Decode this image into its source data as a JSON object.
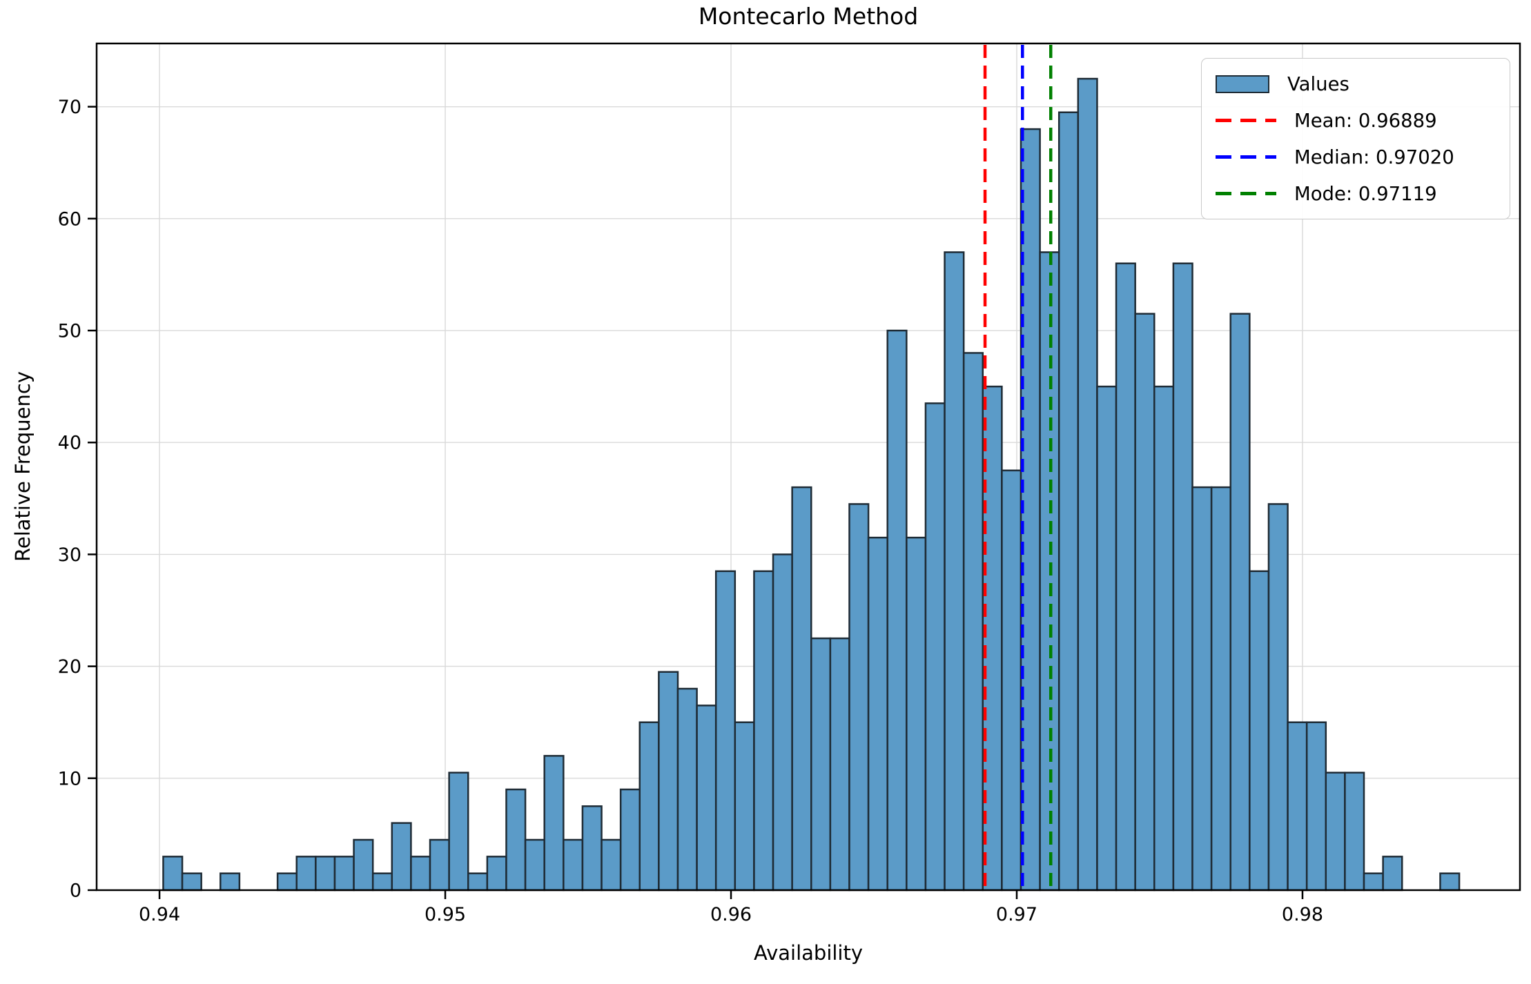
{
  "figure": {
    "title": "Montecarlo Method"
  },
  "chart_data": {
    "type": "bar",
    "subtype": "histogram",
    "title": "Montecarlo Method",
    "xlabel": "Availability",
    "ylabel": "Relative Frequency",
    "bins": {
      "start": 0.94013,
      "width": 0.000667
    },
    "heights": [
      3,
      1.5,
      0,
      1.5,
      0,
      0,
      1.5,
      3,
      3,
      3,
      4.5,
      1.5,
      6,
      3,
      4.5,
      10.5,
      1.5,
      3,
      9,
      4.5,
      12,
      4.5,
      7.5,
      4.5,
      9,
      15,
      19.5,
      18,
      16.5,
      28.5,
      15,
      28.5,
      30,
      36,
      22.5,
      22.5,
      34.5,
      31.5,
      50,
      31.5,
      43.5,
      57,
      48,
      45,
      37.5,
      68,
      57,
      69.5,
      72.5,
      45,
      56,
      51.5,
      45,
      56,
      36,
      36,
      51.5,
      28.5,
      34.5,
      15,
      15,
      10.5,
      10.5,
      1.5,
      3,
      0,
      0,
      1.5
    ],
    "xlim": [
      0.9378,
      0.98761
    ],
    "ylim": [
      0,
      75.65
    ],
    "xticks": {
      "values": [
        0.94,
        0.95,
        0.96,
        0.97,
        0.98
      ],
      "labels": [
        "0.94",
        "0.95",
        "0.96",
        "0.97",
        "0.98"
      ]
    },
    "yticks": {
      "values": [
        0,
        10,
        20,
        30,
        40,
        50,
        60,
        70
      ],
      "labels": [
        "0",
        "10",
        "20",
        "30",
        "40",
        "50",
        "60",
        "70"
      ]
    },
    "grid": true,
    "legend_position": "upper right",
    "stat_lines": [
      {
        "name": "mean",
        "value": 0.96889,
        "color": "#ff0000",
        "label": "Mean: 0.96889"
      },
      {
        "name": "median",
        "value": 0.9702,
        "color": "#0000ff",
        "label": "Median: 0.97020"
      },
      {
        "name": "mode",
        "value": 0.97119,
        "color": "#008000",
        "label": "Mode: 0.97119"
      }
    ],
    "legend": {
      "items": [
        {
          "swatch": "bar",
          "color": "#5b9bc8",
          "label": "Values"
        },
        {
          "swatch": "dash",
          "color": "#ff0000",
          "label": "Mean: 0.96889"
        },
        {
          "swatch": "dash",
          "color": "#0000ff",
          "label": "Median: 0.97020"
        },
        {
          "swatch": "dash",
          "color": "#008000",
          "label": "Mode: 0.97119"
        }
      ]
    },
    "colors": {
      "bar_fill": "#5b9bc8",
      "bar_edge": "#1e2b35",
      "grid": "#d9d9d9",
      "spine": "#000000",
      "text": "#000000",
      "legend_border": "#c9c9c9"
    }
  }
}
